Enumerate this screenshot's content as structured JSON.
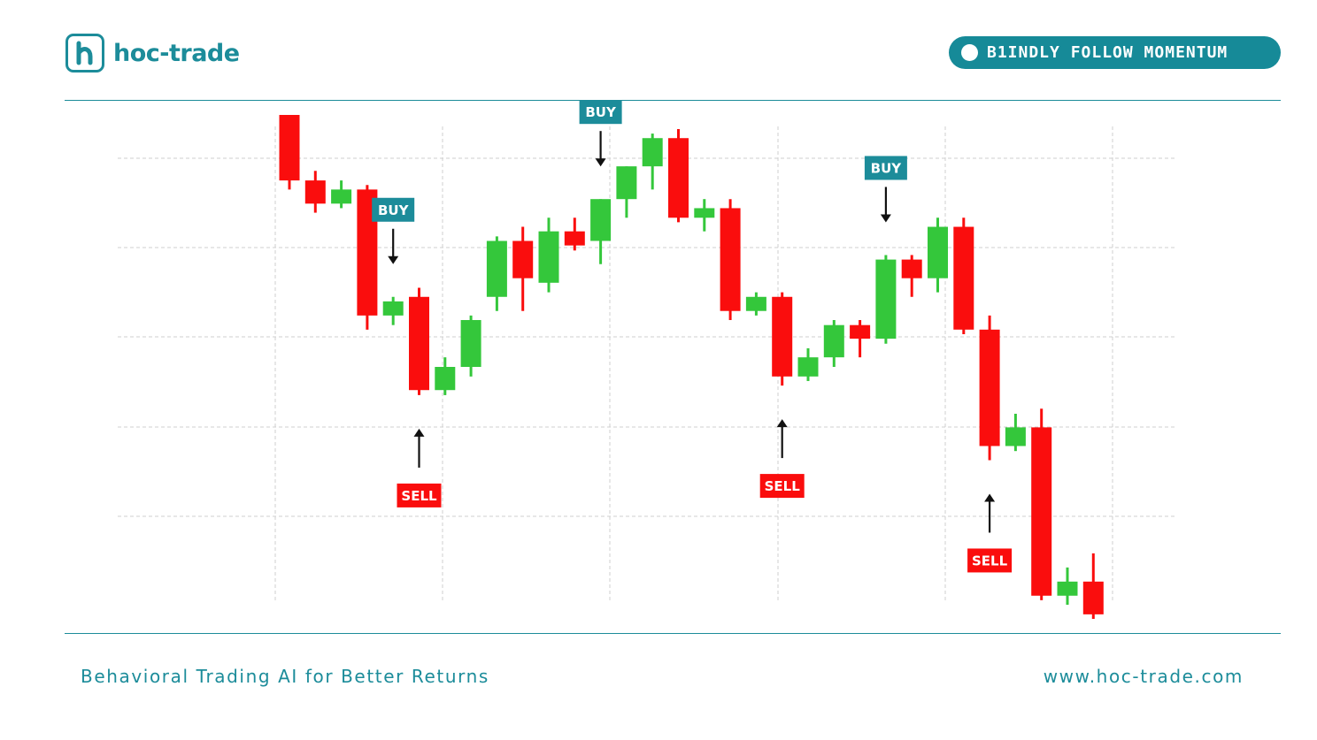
{
  "brand": {
    "logo_text": "hoc-trade",
    "logo_icon": "h-logo-icon",
    "accent_color": "#1c8c9a"
  },
  "badge": {
    "text": "B1INDLY FOLLOW MOMENTUM",
    "icon": "dot-icon",
    "color": "#168a98"
  },
  "footer": {
    "tagline": "Behavioral Trading AI for Better Returns",
    "url": "www.hoc-trade.com"
  },
  "chart_data": {
    "type": "candlestick",
    "title": "",
    "xlabel": "",
    "ylabel": "",
    "ylim": [
      0,
      100
    ],
    "grid": true,
    "colors": {
      "up": "#34c73b",
      "down": "#fa0d0d",
      "buy": "#1c8c9a",
      "sell": "#fa0d0d"
    },
    "candles": [
      {
        "o": 100.0,
        "h": 100.0,
        "l": 85.2,
        "c": 87.0
      },
      {
        "o": 87.0,
        "h": 88.9,
        "l": 80.6,
        "c": 82.4
      },
      {
        "o": 82.4,
        "h": 87.0,
        "l": 81.5,
        "c": 85.2
      },
      {
        "o": 85.2,
        "h": 86.1,
        "l": 57.4,
        "c": 60.2
      },
      {
        "o": 60.2,
        "h": 63.9,
        "l": 58.3,
        "c": 63.0
      },
      {
        "o": 63.9,
        "h": 65.7,
        "l": 44.4,
        "c": 45.4
      },
      {
        "o": 45.4,
        "h": 51.9,
        "l": 44.4,
        "c": 50.0
      },
      {
        "o": 50.0,
        "h": 60.2,
        "l": 48.1,
        "c": 59.3
      },
      {
        "o": 63.9,
        "h": 75.9,
        "l": 61.1,
        "c": 75.0
      },
      {
        "o": 75.0,
        "h": 77.8,
        "l": 61.1,
        "c": 67.6
      },
      {
        "o": 66.7,
        "h": 79.6,
        "l": 64.8,
        "c": 76.9
      },
      {
        "o": 76.9,
        "h": 79.6,
        "l": 73.1,
        "c": 74.1
      },
      {
        "o": 75.0,
        "h": 83.3,
        "l": 70.4,
        "c": 83.3
      },
      {
        "o": 83.3,
        "h": 89.8,
        "l": 79.6,
        "c": 89.8
      },
      {
        "o": 89.8,
        "h": 96.3,
        "l": 85.2,
        "c": 95.4
      },
      {
        "o": 95.4,
        "h": 97.2,
        "l": 78.7,
        "c": 79.6
      },
      {
        "o": 79.6,
        "h": 83.3,
        "l": 76.9,
        "c": 81.5
      },
      {
        "o": 81.5,
        "h": 83.3,
        "l": 59.3,
        "c": 61.1
      },
      {
        "o": 61.1,
        "h": 64.8,
        "l": 60.2,
        "c": 63.9
      },
      {
        "o": 63.9,
        "h": 64.8,
        "l": 46.3,
        "c": 48.1
      },
      {
        "o": 48.1,
        "h": 53.7,
        "l": 47.2,
        "c": 51.9
      },
      {
        "o": 51.9,
        "h": 59.3,
        "l": 50.0,
        "c": 58.3
      },
      {
        "o": 58.3,
        "h": 59.3,
        "l": 51.9,
        "c": 55.6
      },
      {
        "o": 55.6,
        "h": 72.2,
        "l": 54.6,
        "c": 71.3
      },
      {
        "o": 71.3,
        "h": 72.2,
        "l": 63.9,
        "c": 67.6
      },
      {
        "o": 67.6,
        "h": 79.6,
        "l": 64.8,
        "c": 77.8
      },
      {
        "o": 77.8,
        "h": 79.6,
        "l": 56.5,
        "c": 57.4
      },
      {
        "o": 57.4,
        "h": 60.2,
        "l": 31.5,
        "c": 34.3
      },
      {
        "o": 34.3,
        "h": 40.7,
        "l": 33.3,
        "c": 38.0
      },
      {
        "o": 38.0,
        "h": 41.7,
        "l": 3.7,
        "c": 4.6
      },
      {
        "o": 4.6,
        "h": 10.2,
        "l": 2.8,
        "c": 7.4
      },
      {
        "o": 7.4,
        "h": 13.0,
        "l": 0.0,
        "c": 0.9
      }
    ],
    "signals": [
      {
        "label": "BUY",
        "type": "buy",
        "candle": 4
      },
      {
        "label": "SELL",
        "type": "sell",
        "candle": 5
      },
      {
        "label": "BUY",
        "type": "buy",
        "candle": 12
      },
      {
        "label": "SELL",
        "type": "sell",
        "candle": 19
      },
      {
        "label": "BUY",
        "type": "buy",
        "candle": 23
      },
      {
        "label": "SELL",
        "type": "sell",
        "candle": 27
      }
    ]
  }
}
